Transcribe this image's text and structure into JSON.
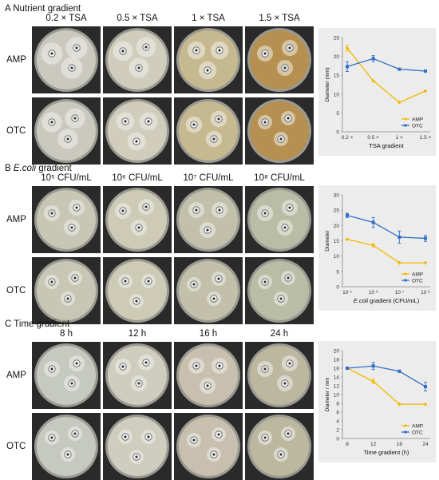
{
  "panels": [
    {
      "letter": "A",
      "title": "Nutrient gradient",
      "title_italic": "",
      "columns": [
        "0.2 × TSA",
        "0.5 × TSA",
        "1 × TSA",
        "1.5 × TSA"
      ],
      "rows": [
        "AMP",
        "OTC"
      ]
    },
    {
      "letter": "B",
      "title": " gradient",
      "title_italic": "E.coli",
      "columns": [
        "10⁵ CFU/mL",
        "10⁶ CFU/mL",
        "10⁷ CFU/mL",
        "10⁸ CFU/mL"
      ],
      "rows": [
        "AMP",
        "OTC"
      ]
    },
    {
      "letter": "C",
      "title": "Time gradient",
      "title_italic": "",
      "columns": [
        "8 h",
        "12 h",
        "16 h",
        "24 h"
      ],
      "rows": [
        "AMP",
        "OTC"
      ]
    }
  ],
  "colors": {
    "AMP": "#f5b800",
    "OTC": "#2f6dc4",
    "plate_A": [
      "#c9c9c0",
      "#d0cdbc",
      "#c7b98f",
      "#b59050"
    ],
    "plate_B": [
      "#c8c6b4",
      "#cdcab5",
      "#c2bfaa",
      "#b9bda5"
    ],
    "plate_C": [
      "#c6c8c2",
      "#cfcdbe",
      "#c8bfae",
      "#bcb8a0"
    ],
    "background_dark": "#2a2a2a",
    "chart_bg": "#ececec"
  },
  "chart_data": [
    {
      "type": "line",
      "categories": [
        "0.2 ×",
        "0.5 ×",
        "1 ×",
        "1.5 ×"
      ],
      "series": [
        {
          "name": "AMP",
          "values": [
            22.2,
            13.5,
            7.8,
            10.8
          ],
          "err": [
            0.8,
            0,
            0,
            0
          ]
        },
        {
          "name": "OTC",
          "values": [
            17.3,
            19.4,
            16.6,
            16.1
          ],
          "err": [
            1.3,
            0.8,
            0,
            0
          ]
        }
      ],
      "xlabel": "TSA gradient",
      "ylabel": "Diameter (mm)",
      "ylim": [
        0,
        25
      ],
      "yticks": [
        0,
        5,
        10,
        15,
        20,
        25
      ],
      "legend": "bottom-right"
    },
    {
      "type": "line",
      "categories": [
        "10 ⁵",
        "10 ⁶",
        "10 ⁷",
        "10 ⁸"
      ],
      "series": [
        {
          "name": "AMP",
          "values": [
            15.5,
            13.5,
            7.8,
            7.8
          ],
          "err": [
            0,
            0.5,
            0,
            0
          ]
        },
        {
          "name": "OTC",
          "values": [
            23.3,
            21.0,
            16.2,
            15.8
          ],
          "err": [
            0.7,
            1.6,
            2.0,
            1.0
          ]
        }
      ],
      "xlabel": "E.coli gradient (CFU/mL)",
      "ylabel": "Diameter",
      "ylim": [
        0,
        30
      ],
      "yticks": [
        0,
        5,
        10,
        15,
        20,
        25,
        30
      ],
      "legend": "bottom-right"
    },
    {
      "type": "line",
      "categories": [
        "8",
        "12",
        "16",
        "24"
      ],
      "series": [
        {
          "name": "AMP",
          "values": [
            16.0,
            13.0,
            7.8,
            7.8
          ],
          "err": [
            0,
            0.5,
            0,
            0
          ]
        },
        {
          "name": "OTC",
          "values": [
            16.0,
            16.5,
            15.3,
            11.8
          ],
          "err": [
            0,
            0.8,
            0,
            1.0
          ]
        }
      ],
      "xlabel": "Time gradient (h)",
      "ylabel": "Diameter / mm",
      "ylim": [
        0,
        20
      ],
      "yticks": [
        0,
        2,
        4,
        6,
        8,
        10,
        12,
        14,
        16,
        18,
        20
      ],
      "legend": "bottom-right"
    }
  ]
}
